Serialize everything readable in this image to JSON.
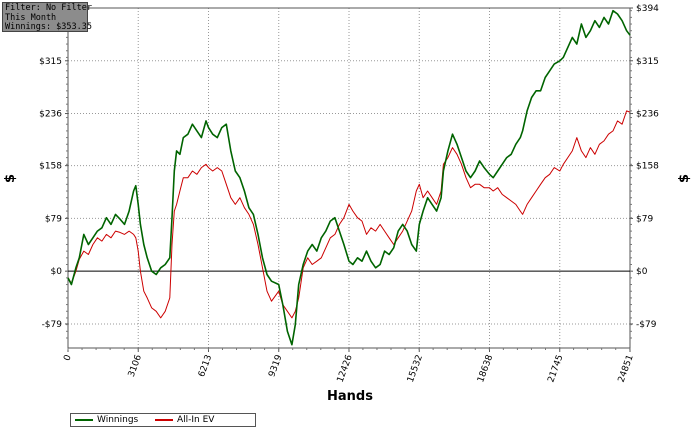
{
  "filter_box": {
    "line1": "Filter: No Filter",
    "line2": "This Month",
    "line3": "Winnings: $353.35"
  },
  "chart_data": {
    "type": "line",
    "xlabel": "Hands",
    "ylabel": "$",
    "xlim": [
      0,
      24851
    ],
    "ylim": [
      -115,
      394
    ],
    "x_ticks": [
      0,
      3106,
      6213,
      9319,
      12426,
      15532,
      18638,
      21745,
      24851
    ],
    "y_ticks": [
      -79,
      0,
      79,
      158,
      236,
      315,
      394
    ],
    "y_tick_labels": [
      "-$79",
      "$0",
      "$79",
      "$158",
      "$236",
      "$315",
      "$394"
    ],
    "grid": true,
    "legend_position": "bottom-left",
    "series": [
      {
        "name": "Winnings",
        "color": "#006400",
        "points": [
          [
            0,
            -10
          ],
          [
            150,
            -20
          ],
          [
            350,
            5
          ],
          [
            500,
            20
          ],
          [
            700,
            55
          ],
          [
            900,
            40
          ],
          [
            1100,
            50
          ],
          [
            1300,
            60
          ],
          [
            1500,
            65
          ],
          [
            1700,
            80
          ],
          [
            1900,
            70
          ],
          [
            2100,
            85
          ],
          [
            2300,
            78
          ],
          [
            2500,
            70
          ],
          [
            2700,
            90
          ],
          [
            2900,
            120
          ],
          [
            3000,
            128
          ],
          [
            3106,
            100
          ],
          [
            3200,
            70
          ],
          [
            3350,
            40
          ],
          [
            3500,
            20
          ],
          [
            3700,
            0
          ],
          [
            3900,
            -5
          ],
          [
            4100,
            5
          ],
          [
            4300,
            10
          ],
          [
            4500,
            20
          ],
          [
            4600,
            80
          ],
          [
            4700,
            150
          ],
          [
            4800,
            180
          ],
          [
            4950,
            175
          ],
          [
            5100,
            200
          ],
          [
            5300,
            205
          ],
          [
            5500,
            220
          ],
          [
            5700,
            210
          ],
          [
            5900,
            200
          ],
          [
            6100,
            225
          ],
          [
            6213,
            215
          ],
          [
            6400,
            205
          ],
          [
            6600,
            200
          ],
          [
            6800,
            215
          ],
          [
            7000,
            220
          ],
          [
            7200,
            180
          ],
          [
            7400,
            150
          ],
          [
            7600,
            140
          ],
          [
            7800,
            120
          ],
          [
            8000,
            95
          ],
          [
            8200,
            85
          ],
          [
            8400,
            55
          ],
          [
            8600,
            20
          ],
          [
            8800,
            -5
          ],
          [
            9000,
            -15
          ],
          [
            9319,
            -20
          ],
          [
            9500,
            -50
          ],
          [
            9700,
            -90
          ],
          [
            9900,
            -110
          ],
          [
            10050,
            -80
          ],
          [
            10200,
            -20
          ],
          [
            10400,
            10
          ],
          [
            10600,
            30
          ],
          [
            10800,
            40
          ],
          [
            11000,
            30
          ],
          [
            11200,
            50
          ],
          [
            11400,
            60
          ],
          [
            11600,
            75
          ],
          [
            11800,
            80
          ],
          [
            12000,
            60
          ],
          [
            12200,
            40
          ],
          [
            12426,
            15
          ],
          [
            12600,
            10
          ],
          [
            12800,
            20
          ],
          [
            13000,
            15
          ],
          [
            13200,
            30
          ],
          [
            13400,
            15
          ],
          [
            13600,
            5
          ],
          [
            13800,
            10
          ],
          [
            14000,
            30
          ],
          [
            14200,
            25
          ],
          [
            14400,
            35
          ],
          [
            14600,
            60
          ],
          [
            14800,
            70
          ],
          [
            15000,
            60
          ],
          [
            15200,
            40
          ],
          [
            15400,
            30
          ],
          [
            15532,
            70
          ],
          [
            15700,
            90
          ],
          [
            15900,
            110
          ],
          [
            16100,
            100
          ],
          [
            16300,
            90
          ],
          [
            16500,
            110
          ],
          [
            16600,
            150
          ],
          [
            16800,
            180
          ],
          [
            17000,
            205
          ],
          [
            17200,
            190
          ],
          [
            17400,
            170
          ],
          [
            17600,
            150
          ],
          [
            17800,
            140
          ],
          [
            18000,
            150
          ],
          [
            18200,
            165
          ],
          [
            18400,
            155
          ],
          [
            18638,
            145
          ],
          [
            18800,
            140
          ],
          [
            19000,
            150
          ],
          [
            19200,
            160
          ],
          [
            19400,
            170
          ],
          [
            19600,
            175
          ],
          [
            19800,
            190
          ],
          [
            20000,
            200
          ],
          [
            20100,
            210
          ],
          [
            20300,
            240
          ],
          [
            20500,
            260
          ],
          [
            20700,
            270
          ],
          [
            20900,
            270
          ],
          [
            21100,
            290
          ],
          [
            21300,
            300
          ],
          [
            21500,
            310
          ],
          [
            21745,
            315
          ],
          [
            21900,
            320
          ],
          [
            22100,
            335
          ],
          [
            22300,
            350
          ],
          [
            22500,
            340
          ],
          [
            22700,
            370
          ],
          [
            22900,
            350
          ],
          [
            23100,
            360
          ],
          [
            23300,
            375
          ],
          [
            23500,
            365
          ],
          [
            23700,
            380
          ],
          [
            23900,
            370
          ],
          [
            24100,
            390
          ],
          [
            24300,
            385
          ],
          [
            24500,
            375
          ],
          [
            24700,
            360
          ],
          [
            24851,
            353.35
          ]
        ]
      },
      {
        "name": "All-In EV",
        "color": "#cc0000",
        "points": [
          [
            0,
            -10
          ],
          [
            150,
            -18
          ],
          [
            350,
            0
          ],
          [
            500,
            18
          ],
          [
            700,
            30
          ],
          [
            900,
            25
          ],
          [
            1100,
            40
          ],
          [
            1300,
            50
          ],
          [
            1500,
            45
          ],
          [
            1700,
            55
          ],
          [
            1900,
            50
          ],
          [
            2100,
            60
          ],
          [
            2300,
            58
          ],
          [
            2500,
            55
          ],
          [
            2700,
            60
          ],
          [
            2900,
            55
          ],
          [
            3000,
            50
          ],
          [
            3106,
            30
          ],
          [
            3200,
            0
          ],
          [
            3350,
            -30
          ],
          [
            3500,
            -40
          ],
          [
            3700,
            -55
          ],
          [
            3900,
            -60
          ],
          [
            4100,
            -70
          ],
          [
            4300,
            -60
          ],
          [
            4500,
            -40
          ],
          [
            4600,
            40
          ],
          [
            4700,
            90
          ],
          [
            4800,
            100
          ],
          [
            4950,
            120
          ],
          [
            5100,
            140
          ],
          [
            5300,
            140
          ],
          [
            5500,
            150
          ],
          [
            5700,
            145
          ],
          [
            5900,
            155
          ],
          [
            6100,
            160
          ],
          [
            6213,
            155
          ],
          [
            6400,
            150
          ],
          [
            6600,
            155
          ],
          [
            6800,
            150
          ],
          [
            7000,
            130
          ],
          [
            7200,
            110
          ],
          [
            7400,
            100
          ],
          [
            7600,
            110
          ],
          [
            7800,
            95
          ],
          [
            8000,
            85
          ],
          [
            8200,
            70
          ],
          [
            8400,
            40
          ],
          [
            8600,
            5
          ],
          [
            8800,
            -30
          ],
          [
            9000,
            -45
          ],
          [
            9319,
            -30
          ],
          [
            9500,
            -50
          ],
          [
            9700,
            -60
          ],
          [
            9900,
            -70
          ],
          [
            10050,
            -60
          ],
          [
            10200,
            -40
          ],
          [
            10400,
            5
          ],
          [
            10600,
            20
          ],
          [
            10800,
            10
          ],
          [
            11000,
            15
          ],
          [
            11200,
            20
          ],
          [
            11400,
            35
          ],
          [
            11600,
            50
          ],
          [
            11800,
            55
          ],
          [
            12000,
            70
          ],
          [
            12200,
            80
          ],
          [
            12426,
            100
          ],
          [
            12600,
            90
          ],
          [
            12800,
            80
          ],
          [
            13000,
            75
          ],
          [
            13200,
            55
          ],
          [
            13400,
            65
          ],
          [
            13600,
            60
          ],
          [
            13800,
            70
          ],
          [
            14000,
            60
          ],
          [
            14200,
            50
          ],
          [
            14400,
            40
          ],
          [
            14600,
            50
          ],
          [
            14800,
            60
          ],
          [
            15000,
            75
          ],
          [
            15200,
            90
          ],
          [
            15400,
            120
          ],
          [
            15532,
            130
          ],
          [
            15700,
            110
          ],
          [
            15900,
            120
          ],
          [
            16100,
            110
          ],
          [
            16300,
            100
          ],
          [
            16500,
            120
          ],
          [
            16600,
            160
          ],
          [
            16800,
            170
          ],
          [
            17000,
            185
          ],
          [
            17200,
            175
          ],
          [
            17400,
            160
          ],
          [
            17600,
            140
          ],
          [
            17800,
            125
          ],
          [
            18000,
            130
          ],
          [
            18200,
            130
          ],
          [
            18400,
            125
          ],
          [
            18638,
            125
          ],
          [
            18800,
            120
          ],
          [
            19000,
            125
          ],
          [
            19200,
            115
          ],
          [
            19400,
            110
          ],
          [
            19600,
            105
          ],
          [
            19800,
            100
          ],
          [
            20000,
            90
          ],
          [
            20100,
            85
          ],
          [
            20300,
            100
          ],
          [
            20500,
            110
          ],
          [
            20700,
            120
          ],
          [
            20900,
            130
          ],
          [
            21100,
            140
          ],
          [
            21300,
            145
          ],
          [
            21500,
            155
          ],
          [
            21745,
            150
          ],
          [
            21900,
            160
          ],
          [
            22100,
            170
          ],
          [
            22300,
            180
          ],
          [
            22500,
            200
          ],
          [
            22700,
            180
          ],
          [
            22900,
            170
          ],
          [
            23100,
            185
          ],
          [
            23300,
            175
          ],
          [
            23500,
            190
          ],
          [
            23700,
            195
          ],
          [
            23900,
            205
          ],
          [
            24100,
            210
          ],
          [
            24300,
            225
          ],
          [
            24500,
            220
          ],
          [
            24700,
            240
          ],
          [
            24851,
            238
          ]
        ]
      }
    ]
  }
}
